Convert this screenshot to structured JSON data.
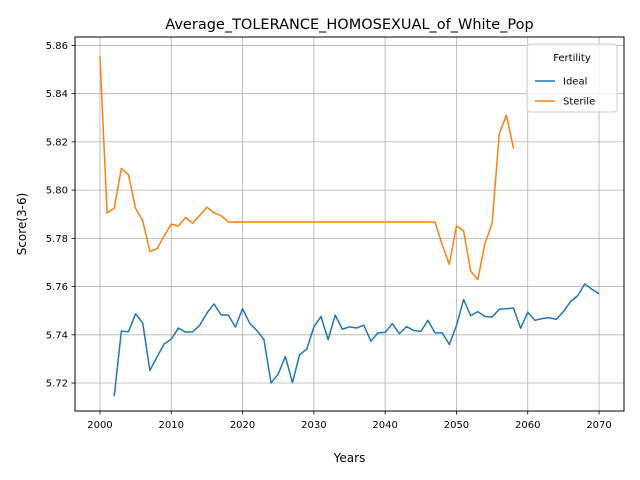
{
  "chart_data": {
    "type": "line",
    "title": "Average_TOLERANCE_HOMOSEXUAL_of_White_Pop",
    "xlabel": "Years",
    "ylabel": "Score(3-6)",
    "xlim": [
      1996.5,
      2073.5
    ],
    "ylim": [
      5.7084,
      5.8635
    ],
    "xticks": [
      2000,
      2010,
      2020,
      2030,
      2040,
      2050,
      2060,
      2070
    ],
    "yticks": [
      5.72,
      5.74,
      5.76,
      5.78,
      5.8,
      5.82,
      5.84,
      5.86
    ],
    "xtick_labels": [
      "2000",
      "2010",
      "2020",
      "2030",
      "2040",
      "2050",
      "2060",
      "2070"
    ],
    "ytick_labels": [
      "5.72",
      "5.74",
      "5.76",
      "5.78",
      "5.80",
      "5.82",
      "5.84",
      "5.86"
    ],
    "grid": true,
    "legend": {
      "title": "Fertility",
      "placement": "top-right"
    },
    "series": [
      {
        "name": "Ideal",
        "color": "#1f77b4",
        "x": [
          2002,
          2003,
          2004,
          2005,
          2006,
          2007,
          2008,
          2009,
          2010,
          2011,
          2012,
          2013,
          2014,
          2015,
          2016,
          2017,
          2018,
          2019,
          2020,
          2021,
          2022,
          2023,
          2024,
          2025,
          2026,
          2027,
          2028,
          2029,
          2030,
          2031,
          2032,
          2033,
          2034,
          2035,
          2036,
          2037,
          2038,
          2039,
          2040,
          2041,
          2042,
          2043,
          2044,
          2045,
          2046,
          2047,
          2048,
          2049,
          2050,
          2051,
          2052,
          2053,
          2054,
          2055,
          2056,
          2057,
          2058,
          2059,
          2060,
          2061,
          2062,
          2063,
          2064,
          2065,
          2066,
          2067,
          2068,
          2069,
          2070
        ],
        "values": [
          5.7145,
          5.7415,
          5.7413,
          5.7487,
          5.7449,
          5.7252,
          5.7308,
          5.7362,
          5.7382,
          5.7428,
          5.7411,
          5.7412,
          5.744,
          5.749,
          5.7528,
          5.7482,
          5.7482,
          5.7432,
          5.7508,
          5.7448,
          5.7418,
          5.738,
          5.72,
          5.7237,
          5.731,
          5.7201,
          5.7318,
          5.734,
          5.7432,
          5.7476,
          5.738,
          5.7482,
          5.7423,
          5.7433,
          5.7428,
          5.744,
          5.7374,
          5.7408,
          5.741,
          5.7446,
          5.7405,
          5.7434,
          5.7418,
          5.7414,
          5.746,
          5.7408,
          5.7408,
          5.736,
          5.7438,
          5.7546,
          5.7479,
          5.7496,
          5.7476,
          5.7474,
          5.7506,
          5.7508,
          5.7511,
          5.7427,
          5.7494,
          5.746,
          5.7467,
          5.7471,
          5.7464,
          5.7496,
          5.7538,
          5.7562,
          5.7611,
          5.7589,
          5.757
        ]
      },
      {
        "name": "Sterile",
        "color": "#ff7f0e",
        "x": [
          2000,
          2001,
          2002,
          2003,
          2004,
          2005,
          2006,
          2007,
          2008,
          2009,
          2010,
          2011,
          2012,
          2013,
          2014,
          2015,
          2016,
          2017,
          2018,
          2019,
          2020,
          2021,
          2022,
          2023,
          2024,
          2025,
          2026,
          2027,
          2028,
          2029,
          2030,
          2031,
          2032,
          2033,
          2034,
          2035,
          2036,
          2037,
          2038,
          2039,
          2040,
          2041,
          2042,
          2043,
          2044,
          2045,
          2046,
          2047,
          2048,
          2049,
          2050,
          2051,
          2052,
          2053,
          2054,
          2055,
          2056,
          2057,
          2058
        ],
        "values": [
          5.8555,
          5.7905,
          5.7925,
          5.809,
          5.8064,
          5.7924,
          5.7873,
          5.7745,
          5.7757,
          5.781,
          5.7859,
          5.7851,
          5.7886,
          5.7863,
          5.7895,
          5.7929,
          5.7906,
          5.7894,
          5.7868,
          5.7868,
          5.7868,
          5.7868,
          5.7868,
          5.7868,
          5.7868,
          5.7868,
          5.7868,
          5.7868,
          5.7868,
          5.7868,
          5.7868,
          5.7868,
          5.7868,
          5.7868,
          5.7868,
          5.7868,
          5.7868,
          5.7868,
          5.7868,
          5.7868,
          5.7868,
          5.7868,
          5.7868,
          5.7868,
          5.7868,
          5.7868,
          5.7868,
          5.7868,
          5.7773,
          5.7692,
          5.7851,
          5.7831,
          5.7664,
          5.7629,
          5.7779,
          5.7861,
          5.8233,
          5.8311,
          5.8173
        ]
      }
    ]
  }
}
